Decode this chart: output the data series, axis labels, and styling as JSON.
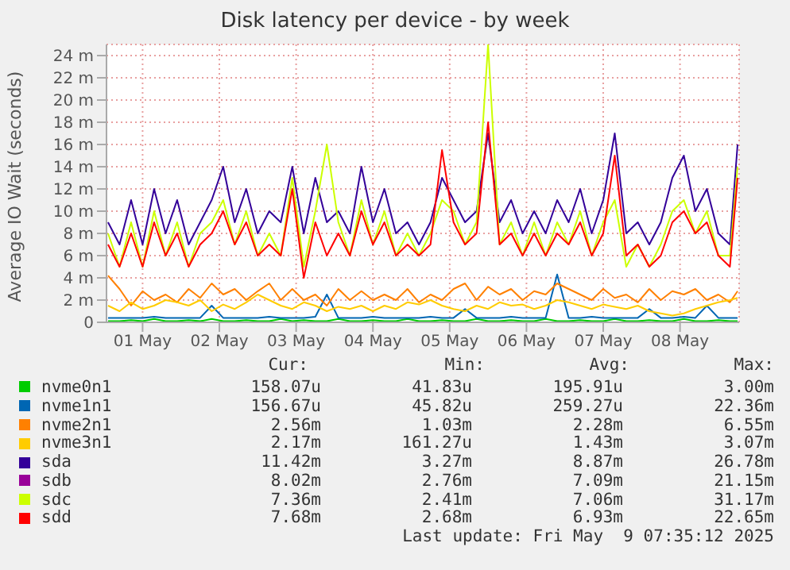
{
  "chart_data": {
    "type": "line",
    "title": "Disk latency per device - by week",
    "ylabel": "Average IO Wait (seconds)",
    "x": [
      "2025-05-01T01:12",
      "2025-05-01T04:48",
      "2025-05-01T08:24",
      "2025-05-01T12:00",
      "2025-05-01T15:36",
      "2025-05-01T19:12",
      "2025-05-01T22:48",
      "2025-05-02T02:24",
      "2025-05-02T06:00",
      "2025-05-02T09:36",
      "2025-05-02T13:12",
      "2025-05-02T16:48",
      "2025-05-02T20:24",
      "2025-05-03T00:00",
      "2025-05-03T03:36",
      "2025-05-03T07:12",
      "2025-05-03T10:48",
      "2025-05-03T14:24",
      "2025-05-03T18:00",
      "2025-05-03T21:36",
      "2025-05-04T01:12",
      "2025-05-04T04:48",
      "2025-05-04T08:24",
      "2025-05-04T12:00",
      "2025-05-04T15:36",
      "2025-05-04T19:12",
      "2025-05-04T22:48",
      "2025-05-05T02:24",
      "2025-05-05T06:00",
      "2025-05-05T09:36",
      "2025-05-05T13:12",
      "2025-05-05T16:48",
      "2025-05-05T20:24",
      "2025-05-06T00:00",
      "2025-05-06T03:36",
      "2025-05-06T07:12",
      "2025-05-06T10:48",
      "2025-05-06T14:24",
      "2025-05-06T18:00",
      "2025-05-06T21:36",
      "2025-05-07T01:12",
      "2025-05-07T04:48",
      "2025-05-07T08:24",
      "2025-05-07T12:00",
      "2025-05-07T15:36",
      "2025-05-07T19:12",
      "2025-05-07T22:48",
      "2025-05-08T02:24",
      "2025-05-08T06:00",
      "2025-05-08T09:36",
      "2025-05-08T13:12",
      "2025-05-08T16:48",
      "2025-05-08T20:24",
      "2025-05-09T00:00",
      "2025-05-09T03:36",
      "2025-05-09T06:00"
    ],
    "xlim": [
      "2025-05-01T00:43",
      "2025-05-09T06:29"
    ],
    "xticks": [
      {
        "value": "2025-05-01T12:00",
        "label": "01 May"
      },
      {
        "value": "2025-05-02T12:00",
        "label": "02 May"
      },
      {
        "value": "2025-05-03T12:00",
        "label": "03 May"
      },
      {
        "value": "2025-05-04T12:00",
        "label": "04 May"
      },
      {
        "value": "2025-05-05T12:00",
        "label": "05 May"
      },
      {
        "value": "2025-05-06T12:00",
        "label": "06 May"
      },
      {
        "value": "2025-05-07T12:00",
        "label": "07 May"
      },
      {
        "value": "2025-05-08T12:00",
        "label": "08 May"
      }
    ],
    "ylim": [
      0,
      25
    ],
    "yticks": [
      0,
      {
        "value": 2,
        "label": "2 m"
      },
      {
        "value": 4,
        "label": "4 m"
      },
      {
        "value": 6,
        "label": "6 m"
      },
      {
        "value": 8,
        "label": "8 m"
      },
      {
        "value": 10,
        "label": "10 m"
      },
      {
        "value": 12,
        "label": "12 m"
      },
      {
        "value": 14,
        "label": "14 m"
      },
      {
        "value": 16,
        "label": "16 m"
      },
      {
        "value": 18,
        "label": "18 m"
      },
      {
        "value": 20,
        "label": "20 m"
      },
      {
        "value": 22,
        "label": "22 m"
      },
      {
        "value": 24,
        "label": "24 m"
      }
    ],
    "grid": true,
    "legend": "bottom",
    "marker": "none",
    "line_style": "solid",
    "series": [
      {
        "name": "nvme0n1",
        "color": "#00cc00",
        "values": [
          0.1,
          0.1,
          0.2,
          0.1,
          0.3,
          0.1,
          0.1,
          0.2,
          0.1,
          0.3,
          0.1,
          0.1,
          0.2,
          0.1,
          0.1,
          0.3,
          0.1,
          0.2,
          0.1,
          0.1,
          0.3,
          0.1,
          0.1,
          0.2,
          0.1,
          0.1,
          0.3,
          0.1,
          0.1,
          0.2,
          0.1,
          0.1,
          0.3,
          0.1,
          0.1,
          0.2,
          0.1,
          0.1,
          0.3,
          0.1,
          0.1,
          0.2,
          0.1,
          0.1,
          0.3,
          0.1,
          0.1,
          0.2,
          0.1,
          0.1,
          0.3,
          0.1,
          0.1,
          0.2,
          0.1,
          0.1
        ]
      },
      {
        "name": "nvme1n1",
        "color": "#0066b3",
        "values": [
          0.4,
          0.4,
          0.4,
          0.4,
          0.5,
          0.4,
          0.4,
          0.4,
          0.4,
          1.5,
          0.4,
          0.4,
          0.4,
          0.4,
          0.5,
          0.4,
          0.4,
          0.4,
          0.5,
          2.5,
          0.4,
          0.4,
          0.4,
          0.5,
          0.4,
          0.4,
          0.4,
          0.4,
          0.5,
          0.4,
          0.4,
          1.2,
          0.4,
          0.4,
          0.4,
          0.5,
          0.4,
          0.4,
          0.4,
          4.3,
          0.4,
          0.4,
          0.5,
          0.4,
          0.4,
          0.4,
          0.4,
          1.2,
          0.4,
          0.4,
          0.5,
          0.4,
          1.5,
          0.4,
          0.4,
          0.4
        ]
      },
      {
        "name": "nvme2n1",
        "color": "#ff8000",
        "values": [
          4.2,
          3,
          1.5,
          2.8,
          2,
          2.5,
          1.8,
          3,
          2.2,
          3.5,
          2.5,
          3,
          2,
          2.8,
          3.5,
          2,
          3,
          2,
          2.5,
          1.5,
          3,
          2,
          2.8,
          2,
          2.5,
          2,
          3,
          1.8,
          2.5,
          2,
          3,
          3.5,
          2,
          3.2,
          2.5,
          3,
          2,
          2.8,
          2.5,
          3.5,
          3,
          2.5,
          2,
          3,
          2.2,
          2.5,
          1.8,
          3,
          2,
          2.8,
          2.5,
          3,
          2,
          2.5,
          1.8,
          2.8
        ]
      },
      {
        "name": "nvme3n1",
        "color": "#ffcc00",
        "values": [
          1.5,
          1,
          1.8,
          1.2,
          1.5,
          2,
          1.8,
          1.5,
          2,
          1,
          1.6,
          1.2,
          1.8,
          2.5,
          2,
          1.5,
          1.2,
          1.8,
          1.5,
          1,
          1.4,
          1.2,
          1.5,
          1,
          1.5,
          1.2,
          1.8,
          1.6,
          2,
          1.5,
          1.2,
          1,
          1.5,
          1.2,
          1.8,
          1.5,
          1.6,
          1.2,
          1.5,
          2,
          1.8,
          1.5,
          1.2,
          1.6,
          1.4,
          1.2,
          1.5,
          1,
          0.8,
          0.6,
          0.8,
          1.2,
          1.5,
          1.8,
          2,
          2.2
        ]
      },
      {
        "name": "sda",
        "color": "#330099",
        "values": [
          9,
          7,
          11,
          7,
          12,
          8,
          11,
          7,
          9,
          11,
          14,
          9,
          12,
          8,
          10,
          9,
          14,
          8,
          13,
          9,
          10,
          8,
          14,
          9,
          12,
          8,
          9,
          7,
          9,
          13,
          11,
          9,
          10,
          17,
          9,
          11,
          8,
          10,
          8,
          11,
          9,
          12,
          8,
          11,
          17,
          8,
          9,
          7,
          9,
          13,
          15,
          10,
          12,
          8,
          7,
          16
        ]
      },
      {
        "name": "sdb",
        "color": "#990099",
        "values": [
          null,
          null,
          null,
          null,
          null,
          null,
          null,
          null,
          null,
          null,
          null,
          null,
          null,
          null,
          null,
          null,
          null,
          null,
          null,
          null,
          null,
          null,
          null,
          null,
          null,
          null,
          null,
          null,
          null,
          null,
          null,
          null,
          null,
          null,
          null,
          null,
          null,
          null,
          null,
          null,
          null,
          null,
          null,
          null,
          null,
          null,
          null,
          null,
          null,
          null,
          null,
          null,
          null,
          null,
          null,
          null
        ]
      },
      {
        "name": "sdc",
        "color": "#ccff00",
        "values": [
          8,
          5,
          9,
          5,
          10,
          6,
          9,
          5,
          8,
          9,
          11,
          7,
          10,
          6,
          8,
          6,
          13,
          5,
          10,
          16,
          9,
          6,
          11,
          7,
          10,
          6,
          8,
          6,
          8,
          11,
          10,
          7,
          9,
          25,
          7,
          9,
          6,
          9,
          6,
          9,
          7,
          10,
          6,
          9,
          11,
          5,
          7,
          5,
          7,
          10,
          11,
          8,
          10,
          6,
          6,
          14
        ]
      },
      {
        "name": "sdd",
        "color": "#ff0000",
        "values": [
          7,
          5,
          8,
          5,
          9,
          6,
          8,
          5,
          7,
          8,
          10,
          7,
          9,
          6,
          7,
          6,
          12,
          4,
          9,
          6,
          8,
          6,
          10,
          7,
          9,
          6,
          7,
          6,
          7,
          15.5,
          9,
          7,
          8,
          18,
          7,
          8,
          6,
          8,
          6,
          8,
          7,
          9,
          6,
          8,
          15,
          6,
          7,
          5,
          6,
          9,
          10,
          8,
          9,
          6,
          5,
          13
        ]
      }
    ],
    "annotations": [
      "Cur:",
      "Min:",
      "Avg:",
      "Max:",
      "158.07u",
      "41.83u",
      "195.91u",
      "3.00m",
      "156.67u",
      "45.82u",
      "259.27u",
      "22.36m",
      "2.56m",
      "1.03m",
      "2.28m",
      "6.55m",
      "2.17m",
      "161.27u",
      "1.43m",
      "3.07m",
      "11.42m",
      "3.27m",
      "8.87m",
      "26.78m",
      "8.02m",
      "2.76m",
      "7.09m",
      "21.15m",
      "7.36m",
      "2.41m",
      "7.06m",
      "31.17m",
      "7.68m",
      "2.68m",
      "6.93m",
      "22.65m",
      "Last update: Fri May  9 07:35:12 2025"
    ]
  }
}
